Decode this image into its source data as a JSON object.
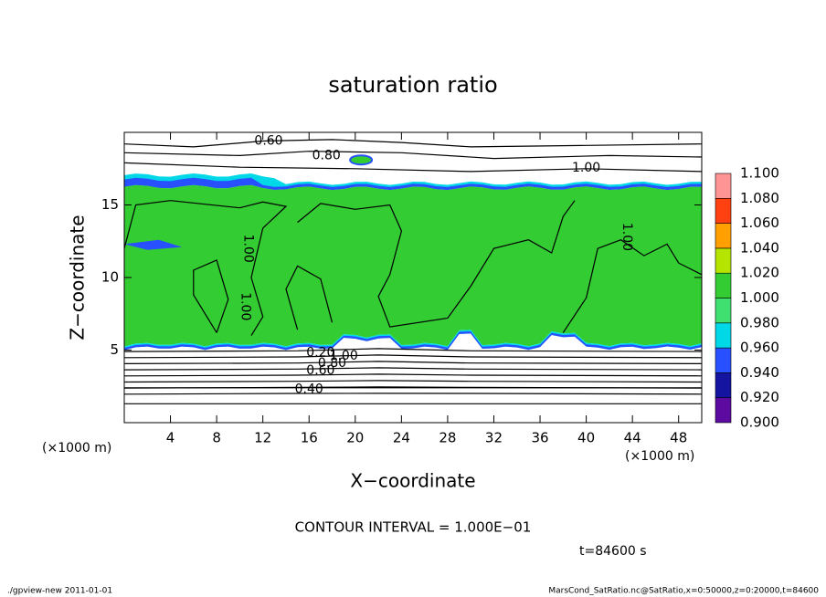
{
  "chart_data": {
    "type": "contour",
    "title": "saturation ratio",
    "xlabel": "X−coordinate",
    "ylabel": "Z−coordinate",
    "xunit": "(×1000 m)",
    "yunit": "(×1000 m)",
    "xlim": [
      0,
      50
    ],
    "xticks": [
      4,
      8,
      12,
      16,
      20,
      24,
      28,
      32,
      36,
      40,
      44,
      48
    ],
    "ylim": [
      0,
      20
    ],
    "yticks": [
      5,
      10,
      15
    ],
    "colorbar": {
      "ticks": [
        {
          "value": 0.9,
          "label": "0.900"
        },
        {
          "value": 0.92,
          "label": "0.920"
        },
        {
          "value": 0.94,
          "label": "0.940"
        },
        {
          "value": 0.96,
          "label": "0.960"
        },
        {
          "value": 0.98,
          "label": "0.980"
        },
        {
          "value": 1.0,
          "label": "1.000"
        },
        {
          "value": 1.02,
          "label": "1.020"
        },
        {
          "value": 1.04,
          "label": "1.040"
        },
        {
          "value": 1.06,
          "label": "1.060"
        },
        {
          "value": 1.08,
          "label": "1.080"
        },
        {
          "value": 1.1,
          "label": "1.100"
        }
      ],
      "colors": [
        "#5c0aa0",
        "#1414a0",
        "#2850ff",
        "#00d8e8",
        "#40e070",
        "#33cc33",
        "#b4e400",
        "#ffa000",
        "#ff4010",
        "#ff9494"
      ]
    },
    "contour_labels": [
      {
        "value": 0.6,
        "label": "0.60"
      },
      {
        "value": 0.8,
        "label": "0.80"
      },
      {
        "value": 1.0,
        "label": "1.00"
      },
      {
        "value": 1.0,
        "label": "1.00"
      },
      {
        "value": 1.0,
        "label": "1.00"
      },
      {
        "value": 1.0,
        "label": "1.00"
      },
      {
        "value": 1.0,
        "label": "1.00"
      },
      {
        "value": 0.8,
        "label": "0.80"
      },
      {
        "value": 0.6,
        "label": "0.60"
      },
      {
        "value": 0.4,
        "label": "0.40"
      },
      {
        "value": 0.2,
        "label": "0.20"
      }
    ],
    "contour_interval": "CONTOUR INTERVAL = 1.000E−01",
    "time_label": "t=84600 s",
    "footer_left": "./gpview-new   2011-01-01",
    "footer_right": "MarsCond_SatRatio.nc@SatRatio,x=0:50000,z=0:20000,t=84600"
  }
}
